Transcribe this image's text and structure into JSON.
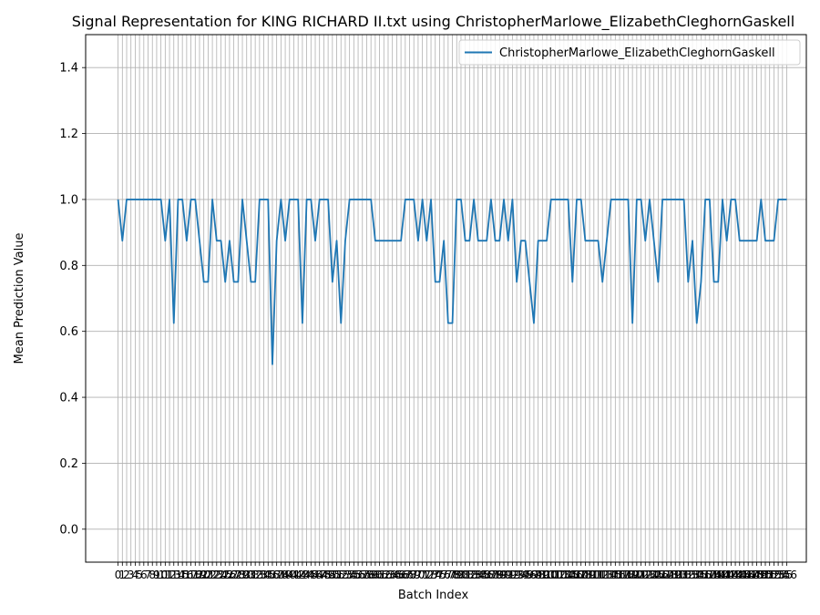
{
  "chart_data": {
    "type": "line",
    "title": "Signal Representation for KING RICHARD II.txt using ChristopherMarlowe_ElizabethCleghornGaskell",
    "xlabel": "Batch Index",
    "ylabel": "Mean Prediction Value",
    "x_range": [
      0,
      153
    ],
    "ylim": [
      -0.1,
      1.5
    ],
    "yticks": [
      "0.0",
      "0.2",
      "0.4",
      "0.6",
      "0.8",
      "1.0",
      "1.2",
      "1.4"
    ],
    "grid": true,
    "legend_position": "top-right",
    "series": [
      {
        "name": "ChristopherMarlowe_ElizabethCleghornGaskell",
        "color": "#1f77b4",
        "values": [
          1.0,
          0.875,
          1.0,
          1.0,
          1.0,
          1.0,
          1.0,
          1.0,
          1.0,
          1.0,
          1.0,
          0.875,
          1.0,
          0.625,
          1.0,
          1.0,
          0.875,
          1.0,
          1.0,
          0.875,
          0.75,
          0.75,
          1.0,
          0.875,
          0.875,
          0.75,
          0.875,
          0.75,
          0.75,
          1.0,
          0.875,
          0.75,
          0.75,
          1.0,
          1.0,
          1.0,
          0.5,
          0.875,
          1.0,
          0.875,
          1.0,
          1.0,
          1.0,
          0.625,
          1.0,
          1.0,
          0.875,
          1.0,
          1.0,
          1.0,
          0.75,
          0.875,
          0.625,
          0.875,
          1.0,
          1.0,
          1.0,
          1.0,
          1.0,
          1.0,
          0.875,
          0.875,
          0.875,
          0.875,
          0.875,
          0.875,
          0.875,
          1.0,
          1.0,
          1.0,
          0.875,
          1.0,
          0.875,
          1.0,
          0.75,
          0.75,
          0.875,
          0.625,
          0.625,
          1.0,
          1.0,
          0.875,
          0.875,
          1.0,
          0.875,
          0.875,
          0.875,
          1.0,
          0.875,
          0.875,
          1.0,
          0.875,
          1.0,
          0.75,
          0.875,
          0.875,
          0.75,
          0.625,
          0.875,
          0.875,
          0.875,
          1.0,
          1.0,
          1.0,
          1.0,
          1.0,
          0.75,
          1.0,
          1.0,
          0.875,
          0.875,
          0.875,
          0.875,
          0.75,
          0.875,
          1.0,
          1.0,
          1.0,
          1.0,
          1.0,
          0.625,
          1.0,
          1.0,
          0.875,
          1.0,
          0.875,
          0.75,
          1.0,
          1.0,
          1.0,
          1.0,
          1.0,
          1.0,
          0.75,
          0.875,
          0.625,
          0.75,
          1.0,
          1.0,
          0.75,
          0.75,
          1.0,
          0.875,
          1.0,
          1.0,
          0.875,
          0.875,
          0.875,
          0.875,
          0.875,
          1.0,
          0.875,
          0.875,
          0.875,
          1.0,
          1.0,
          1.0
        ]
      }
    ]
  }
}
